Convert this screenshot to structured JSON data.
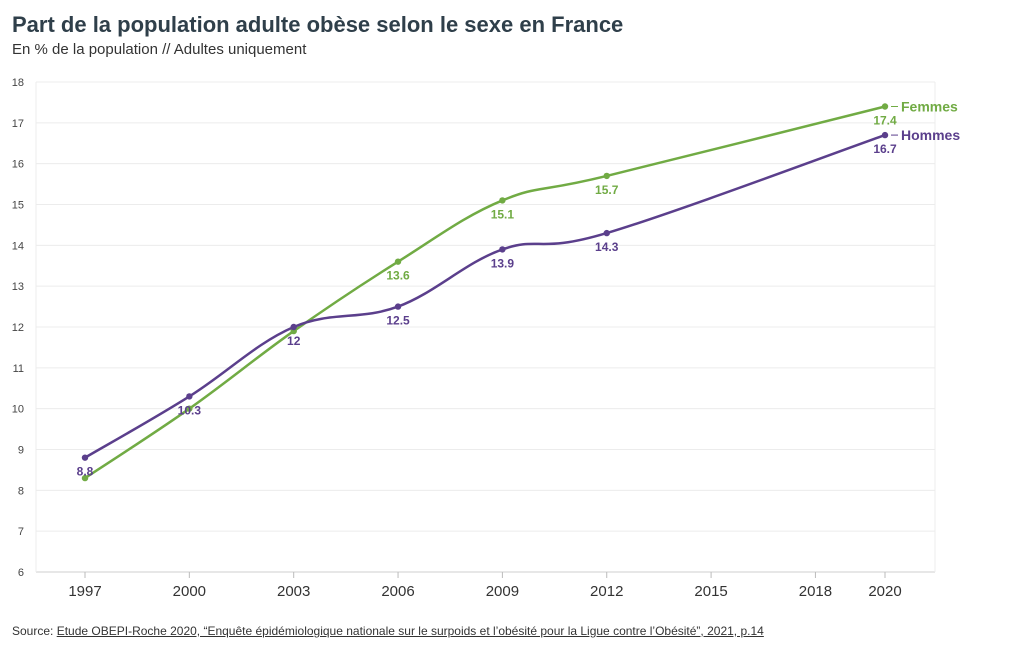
{
  "title": "Part de la population adulte obèse selon le sexe en France",
  "subtitle": "En % de la population // Adultes uniquement",
  "source": {
    "prefix": "Source: ",
    "link_text": "Etude OBEPI-Roche 2020, “Enquête épidémiologique nationale sur le surpoids et l’obésité pour la Ligue contre l’Obésité”, 2021, p.14"
  },
  "chart_data": {
    "type": "line",
    "x_ticks": [
      "1997",
      "2000",
      "2003",
      "2006",
      "2009",
      "2012",
      "2015",
      "2018",
      "2020"
    ],
    "ylim": [
      6,
      18
    ],
    "y_ticks": [
      6,
      7,
      8,
      9,
      10,
      11,
      12,
      13,
      14,
      15,
      16,
      17,
      18
    ],
    "grid": true,
    "series": [
      {
        "name": "Femmes",
        "color": "#71ab44",
        "x": [
          "1997",
          "2000",
          "2003",
          "2006",
          "2009",
          "2012",
          "2020"
        ],
        "values": [
          8.3,
          10,
          11.9,
          13.6,
          15.1,
          15.7,
          17.4
        ],
        "labels": [
          "",
          "",
          "",
          "13.6",
          "15.1",
          "15.7",
          "17.4"
        ]
      },
      {
        "name": "Hommes",
        "color": "#5b3f8c",
        "x": [
          "1997",
          "2000",
          "2003",
          "2006",
          "2009",
          "2012",
          "2020"
        ],
        "values": [
          8.8,
          10.3,
          12,
          12.5,
          13.9,
          14.3,
          16.7
        ],
        "labels": [
          "8.8",
          "10.3",
          "12",
          "12.5",
          "13.9",
          "14.3",
          "16.7"
        ]
      }
    ]
  }
}
